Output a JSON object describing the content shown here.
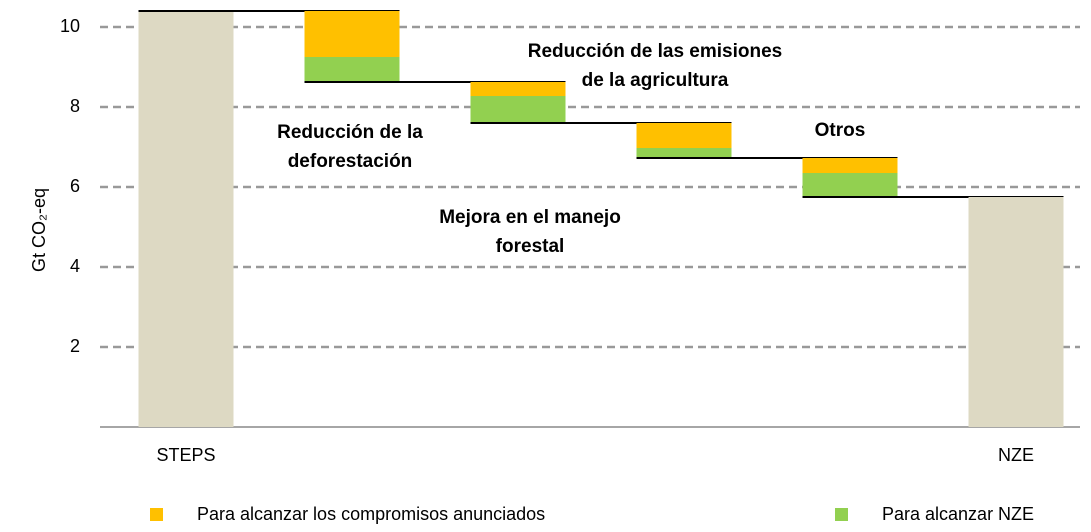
{
  "chart_data": {
    "type": "waterfall",
    "y_label": "Gt CO₂-eq",
    "categories": [
      "STEPS",
      null,
      null,
      null,
      null,
      "NZE"
    ],
    "totals": {
      "color": "#ddd9c3",
      "values": [
        10.4,
        null,
        null,
        null,
        null,
        5.75
      ]
    },
    "series": [
      {
        "name": "Para alcanzar los compromisos anunciados",
        "color": "#ffc000",
        "values": [
          null,
          1.15,
          0.35,
          0.625,
          0.375,
          null
        ]
      },
      {
        "name": "Para alcanzar NZE",
        "color": "#92d050",
        "values": [
          null,
          0.625,
          0.675,
          0.25,
          0.6,
          null
        ]
      }
    ],
    "annotations": [
      [
        "Reducción de la",
        "deforestación"
      ],
      [
        "Reducción de las emisiones",
        "de la agricultura"
      ],
      [
        "Mejora en el manejo",
        "forestal"
      ],
      [
        "Otros"
      ]
    ],
    "ylim": [
      0,
      10.5
    ],
    "yticks": [
      2,
      4,
      6,
      8,
      10
    ],
    "grid": true
  }
}
